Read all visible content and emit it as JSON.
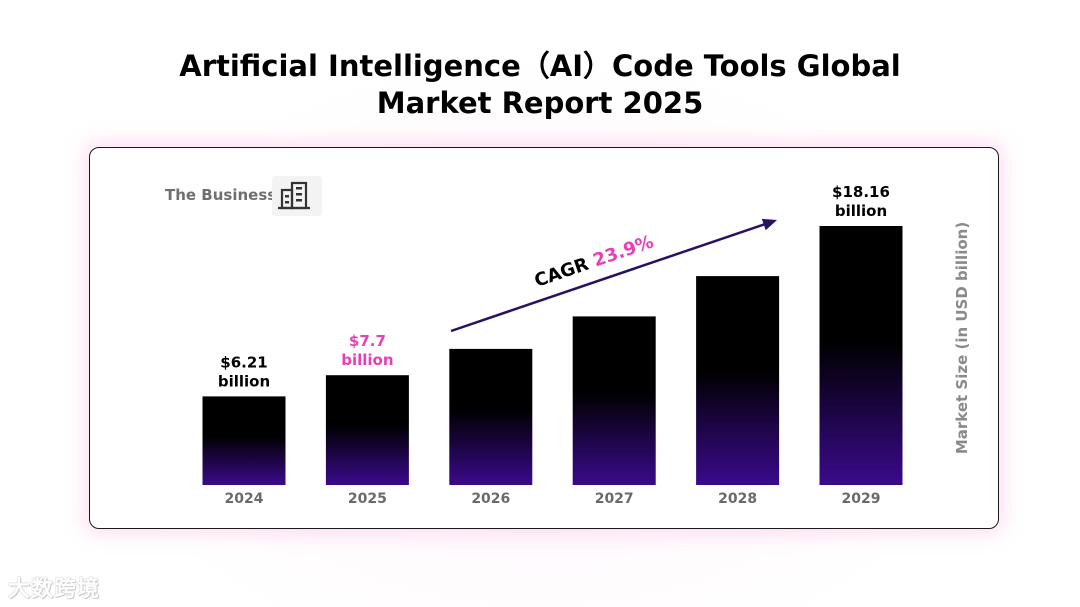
{
  "title_line1": "Artificial Intelligence（AI）Code Tools Global",
  "title_line2": "Market Report 2025",
  "brand_label": "The Business",
  "watermark": "大数跨境",
  "colors": {
    "bar_top": "#000000",
    "bar_bottom": "#3a0a8c",
    "highlight": "#e83fb8",
    "arrow": "#2a1160"
  },
  "chart_data": {
    "type": "bar",
    "title": "Artificial Intelligence（AI）Code Tools Global Market Report 2025",
    "categories": [
      "2024",
      "2025",
      "2026",
      "2027",
      "2028",
      "2029"
    ],
    "values": [
      6.21,
      7.7,
      9.54,
      11.82,
      14.65,
      18.16
    ],
    "value_labels": [
      [
        "$6.21",
        "billion"
      ],
      [
        "$7.7",
        "billion"
      ],
      null,
      null,
      null,
      [
        "$18.16",
        "billion"
      ]
    ],
    "highlight_label_index": 1,
    "ylabel": "Market Size (in USD billion)",
    "xlabel": "",
    "ylim": [
      0,
      18.16
    ],
    "cagr_label": "CAGR",
    "cagr_value": "23.9%"
  }
}
